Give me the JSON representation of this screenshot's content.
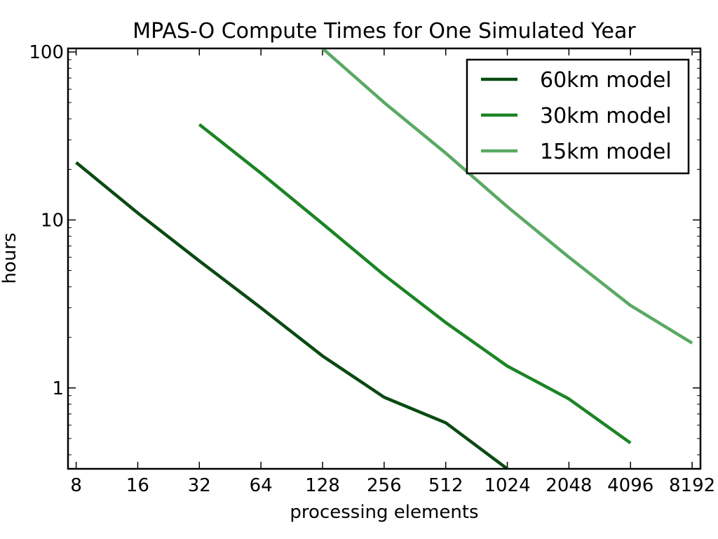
{
  "chart_data": {
    "type": "line",
    "title": "MPAS-O Compute Times for One Simulated Year",
    "xlabel": "processing elements",
    "ylabel": "hours",
    "x_scale": "log2",
    "y_scale": "log10",
    "xlim": [
      7.3,
      9000
    ],
    "ylim": [
      0.33,
      105
    ],
    "x_ticks": [
      8,
      16,
      32,
      64,
      128,
      256,
      512,
      1024,
      2048,
      4096,
      8192
    ],
    "x_tick_labels": [
      "8",
      "16",
      "32",
      "64",
      "128",
      "256",
      "512",
      "1024",
      "2048",
      "4096",
      "8192"
    ],
    "y_ticks": [
      1,
      10,
      100
    ],
    "y_tick_labels": [
      "1",
      "10",
      "100"
    ],
    "grid": false,
    "legend_position": "top-right",
    "series": [
      {
        "name": "60km model",
        "color": "#0b4a12",
        "x": [
          8,
          16,
          32,
          64,
          128,
          256,
          512,
          1024
        ],
        "y": [
          22,
          11,
          5.7,
          3.0,
          1.55,
          0.88,
          0.62,
          0.33
        ]
      },
      {
        "name": "30km model",
        "color": "#1b8424",
        "x": [
          32,
          64,
          128,
          256,
          512,
          1024,
          2048,
          4096
        ],
        "y": [
          37,
          19,
          9.5,
          4.7,
          2.45,
          1.35,
          0.86,
          0.47
        ]
      },
      {
        "name": "15km model",
        "color": "#5aa964",
        "x": [
          128,
          256,
          512,
          1024,
          2048,
          4096,
          8192
        ],
        "y": [
          105,
          50,
          25,
          12,
          6.0,
          3.1,
          1.85
        ]
      }
    ]
  }
}
